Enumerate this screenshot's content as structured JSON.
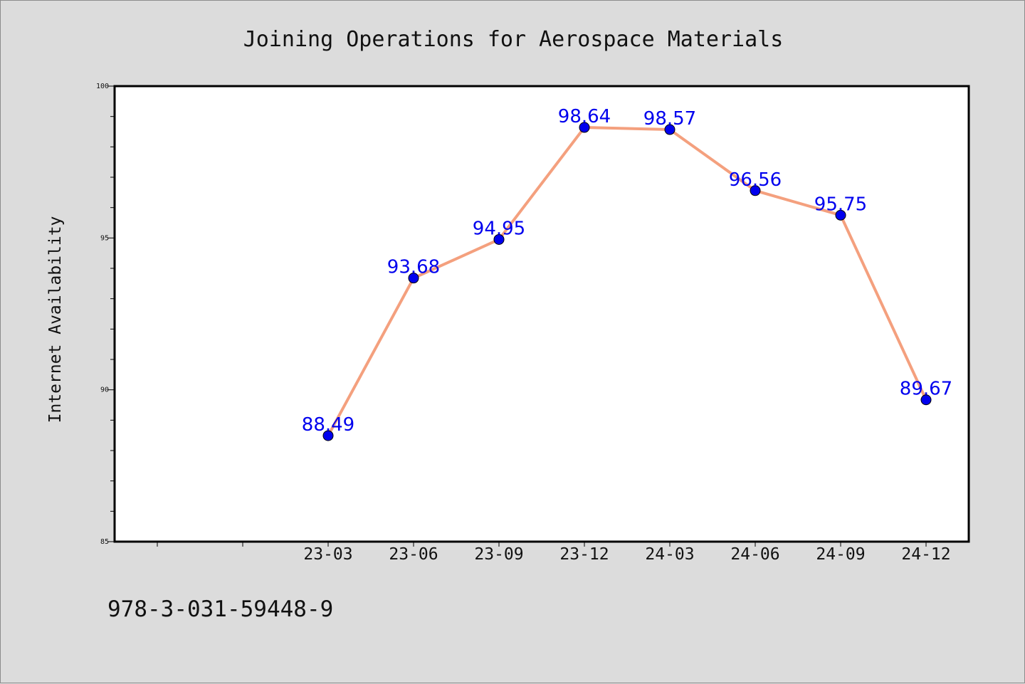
{
  "chart_data": {
    "type": "line",
    "title": "Joining Operations for Aerospace Materials",
    "xlabel": "",
    "ylabel": "Internet Availability",
    "categories": [
      "23-03",
      "23-06",
      "23-09",
      "23-12",
      "24-03",
      "24-06",
      "24-09",
      "24-12"
    ],
    "values": [
      88.49,
      93.68,
      94.95,
      98.64,
      98.57,
      96.56,
      95.75,
      89.67
    ],
    "value_labels": [
      "88.49",
      "93.68",
      "94.95",
      "98.64",
      "98.57",
      "96.56",
      "95.75",
      "89.67"
    ],
    "ylim": [
      85,
      100
    ],
    "yticks": [
      "85",
      "90",
      "95",
      "100"
    ],
    "x_slots_before_first": 2,
    "grid": false,
    "legend": "none",
    "colors": {
      "line": "#f4a07e",
      "marker": "#0000ee",
      "label": "#0000ee",
      "plot_background": "#ffffff",
      "figure_background": "#dcdcdc"
    }
  },
  "footnote": "978-3-031-59448-9"
}
